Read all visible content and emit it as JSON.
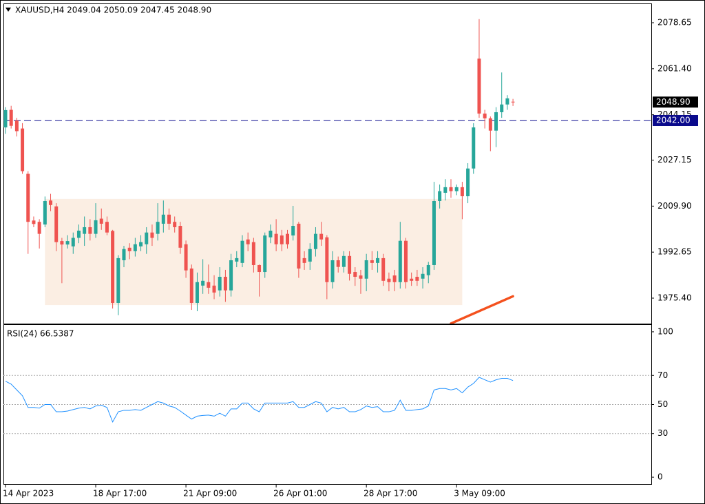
{
  "chart_data": [
    {
      "type": "candlestick",
      "title": "XAUUSD,H4  2049.04 2050.09 2047.45 2048.90",
      "categories": [
        "14 Apr 2023",
        null,
        null,
        null,
        null,
        null,
        null,
        null,
        null,
        null,
        null,
        null,
        null,
        null,
        null,
        null,
        "18 Apr 17:00",
        null,
        null,
        null,
        null,
        null,
        null,
        null,
        null,
        null,
        null,
        null,
        null,
        null,
        null,
        null,
        "21 Apr 09:00",
        null,
        null,
        null,
        null,
        null,
        null,
        null,
        null,
        null,
        null,
        null,
        null,
        null,
        null,
        null,
        "26 Apr 01:00",
        null,
        null,
        null,
        null,
        null,
        null,
        null,
        null,
        null,
        null,
        null,
        null,
        null,
        null,
        null,
        "28 Apr 17:00",
        null,
        null,
        null,
        null,
        null,
        null,
        null,
        null,
        null,
        null,
        null,
        null,
        null,
        null,
        null,
        "3 May 09:00",
        null,
        null,
        null,
        null,
        null,
        null,
        null,
        null,
        null,
        null
      ],
      "open": [
        2039.4,
        2046,
        2042,
        2039,
        2022,
        2004.5,
        2004,
        2003,
        2012,
        2009.8,
        1996.8,
        1995.5,
        1994.8,
        1998,
        1999.5,
        2002,
        1999.5,
        2005.2,
        2004,
        2000.6,
        1973.6,
        1989.6,
        1994.3,
        1993,
        1994.8,
        1995.6,
        2000,
        1999.5,
        2003.3,
        2006.7,
        2004,
        2002.5,
        1995.6,
        1986.5,
        1973.6,
        1980.1,
        1981.4,
        1980.1,
        1978.3,
        1983.4,
        1978.3,
        1989.1,
        1988.6,
        1997.4,
        1996.4,
        1987.8,
        1985.2,
        1998.2,
        1999.5,
        1998.9,
        1999.5,
        1998.9,
        2003.3,
        1990.4,
        1989.1,
        1993.8,
        1999.5,
        1998.2,
        1981.4,
        1989.6,
        1987.1,
        1991.2,
        1985.2,
        1983.9,
        1982.7,
        1989.6,
        1988.6,
        1990.4,
        1982.7,
        1983.9,
        1981.4,
        1996.9,
        1982.7,
        1983.4,
        1982.7,
        1984,
        1987.8,
        2011.8,
        2014.9,
        2017,
        2015.5,
        2017,
        2013.6,
        2024,
        2065.2,
        2044.6,
        2042.8,
        2038.2,
        2045.1,
        2048,
        2049.04
      ],
      "high": [
        2047,
        2047.5,
        2043,
        2041,
        2023,
        2006,
        2005,
        2013.5,
        2014.5,
        2011,
        1998,
        1999,
        2000,
        2003,
        2006,
        2005,
        2011,
        2009,
        2006,
        2001,
        1991.5,
        1995,
        1996,
        1998,
        1999,
        2002,
        2003,
        2011,
        2012,
        2009,
        2006,
        2004,
        1997,
        1988,
        1985,
        1990,
        1988,
        1984,
        1987,
        1986,
        1992,
        1993,
        1999,
        2000,
        1998,
        1988,
        2000,
        2003,
        2005,
        2001,
        2001,
        2010,
        2004,
        1993,
        1996,
        2002,
        2004,
        1999,
        1993,
        1991,
        1993,
        1993,
        1987,
        1986,
        1992,
        1993,
        1993,
        1992,
        1985,
        1986,
        2004,
        1998,
        1985,
        1986,
        1987,
        1989,
        2019,
        2018,
        2020,
        2020,
        2018,
        2019,
        2026,
        2041,
        2080,
        2046,
        2043.5,
        2047,
        2060,
        2051.5,
        2050.09
      ],
      "low": [
        2037,
        2039,
        2036,
        2022,
        1992,
        2002,
        1994,
        2002,
        2008,
        1993,
        1981,
        1994,
        1992,
        1996,
        1995,
        1997,
        1998,
        2001,
        1999,
        1971.5,
        1969,
        1987,
        1990,
        1991,
        1993,
        1992,
        1995,
        1997,
        2000,
        2001,
        2000,
        1992,
        1983,
        1971,
        1970.5,
        1977,
        1977,
        1975,
        1976,
        1974,
        1976,
        1987,
        1987,
        1993,
        1985,
        1976,
        1983,
        1996,
        1993,
        1993,
        1994,
        1997,
        1983,
        1986,
        1986,
        1991,
        1995,
        1975,
        1979,
        1985,
        1985,
        1982,
        1980,
        1977,
        1978,
        1986,
        1985,
        1980,
        1978,
        1978,
        1979,
        1979,
        1980,
        1980,
        1979,
        1981,
        1986,
        2009,
        2012,
        2013,
        2014,
        2005,
        2011,
        2022,
        2043,
        2039,
        2030.5,
        2032,
        2043,
        2046,
        2047.45
      ],
      "close": [
        2045.9,
        2040,
        2038,
        2023,
        2004,
        2003.2,
        1999.5,
        2011.8,
        2010.3,
        1996.4,
        1995.5,
        1996.8,
        1998,
        2000.7,
        2002,
        1999.5,
        2004.6,
        2003.3,
        2000,
        1973.6,
        1990.4,
        1993.8,
        1993,
        1995.6,
        1996.4,
        2000,
        1998,
        2004,
        2006.7,
        2003.3,
        2002,
        1994.3,
        1985.8,
        1973.6,
        1981.4,
        1981.9,
        1979.3,
        1977.5,
        1983.4,
        1978.3,
        1989.6,
        1990.4,
        1996.9,
        1995.6,
        1987.8,
        1985.2,
        1998.9,
        2000.7,
        1995.6,
        1995.6,
        1995.6,
        2002.5,
        1986.5,
        1988.6,
        1993.8,
        1999.5,
        1997.4,
        1981.4,
        1989.6,
        1987.1,
        1991.2,
        1984.5,
        1983.4,
        1982.7,
        1989.6,
        1988.6,
        1990.4,
        1981.9,
        1981.4,
        1981.4,
        1996.9,
        1981.4,
        1981.9,
        1981.9,
        1984.5,
        1987.8,
        2011.8,
        2015.5,
        2017,
        2015.5,
        2017,
        2013.6,
        2024,
        2039.4,
        2044.6,
        2042.8,
        2038.2,
        2045.1,
        2048,
        2050.3,
        2048.9
      ],
      "up_color": "#26a69a",
      "down_color": "#ef5350",
      "ylim": [
        1965.85,
        2085.88
      ],
      "yticks": [
        2078.65,
        {
          "value": 2061.4,
          "label": "2061.40"
        },
        2044.15,
        2027.15,
        {
          "value": 2009.9,
          "label": "2009.90"
        },
        1992.65,
        {
          "value": 1975.4,
          "label": "1975.40"
        }
      ],
      "zone": {
        "x": [
          7,
          81
        ],
        "y": [
          1972.8,
          2012.6
        ],
        "color": "#fbeee3"
      },
      "trend_line": {
        "x": [
          79,
          90
        ],
        "values": [
          1965.9,
          1976.1
        ],
        "color": "#f4511e"
      },
      "hline": {
        "value": 2042,
        "label": "2042.00",
        "color": "#0a0a8c"
      },
      "last_price": {
        "value": 2048.9,
        "label": "2048.90"
      }
    },
    {
      "type": "line",
      "title": "RSI(24) 66.5387",
      "values": [
        66,
        64,
        60,
        56,
        48,
        48,
        47.5,
        50,
        50,
        45,
        45,
        45.5,
        46.5,
        47.5,
        48,
        47,
        49,
        49.5,
        48,
        38,
        45,
        46,
        46,
        46.5,
        46,
        48,
        50,
        52,
        51,
        49,
        48,
        45.5,
        42.7,
        40,
        42,
        42.5,
        42.7,
        42,
        44,
        42,
        47,
        47,
        51,
        51,
        47,
        45,
        51,
        51,
        51,
        51,
        51,
        52,
        48,
        48,
        50,
        52,
        51,
        45,
        48,
        47,
        48,
        45,
        45,
        46.5,
        49,
        48,
        48.5,
        45,
        45,
        46,
        53,
        46,
        46,
        46.5,
        47,
        49,
        60,
        61,
        61,
        60,
        61,
        58,
        62,
        64.5,
        68.7,
        67,
        65.4,
        67,
        68,
        68,
        66.5
      ],
      "color": "#1e90ff",
      "ylim": [
        -4.7,
        104.7
      ],
      "yticks": [
        0,
        30,
        50,
        70,
        100
      ],
      "levels": [
        30,
        50,
        70
      ]
    }
  ]
}
